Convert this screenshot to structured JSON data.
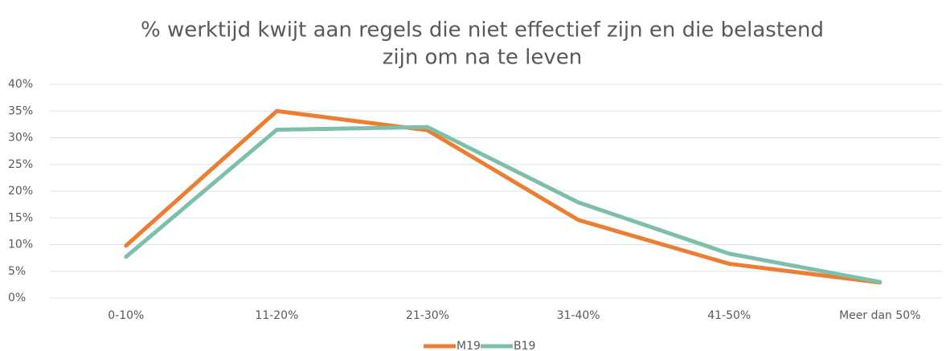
{
  "chart_data": {
    "type": "line",
    "title": [
      "% werktijd kwijt aan regels die niet effectief zijn en die belastend",
      "zijn om na te leven"
    ],
    "categories": [
      "0-10%",
      "11-20%",
      "21-30%",
      "31-40%",
      "41-50%",
      "Meer dan 50%"
    ],
    "series": [
      {
        "name": "M19",
        "color": "#ed7d31",
        "values": [
          9.8,
          35,
          31.4,
          14.6,
          6.4,
          2.9
        ]
      },
      {
        "name": "B19",
        "color": "#7dbfab",
        "values": [
          7.7,
          31.5,
          32,
          17.9,
          8.3,
          3.0
        ]
      }
    ],
    "ylim": [
      0,
      40
    ],
    "yticks": [
      {
        "value": 0,
        "label": "0%"
      },
      {
        "value": 5,
        "label": "5%"
      },
      {
        "value": 10,
        "label": "10%"
      },
      {
        "value": 15,
        "label": "15%"
      },
      {
        "value": 20,
        "label": "20%"
      },
      {
        "value": 25,
        "label": "25%"
      },
      {
        "value": 30,
        "label": "30%"
      },
      {
        "value": 35,
        "label": "35%"
      },
      {
        "value": 40,
        "label": "40%"
      }
    ],
    "grid": true,
    "legend": "bottom"
  }
}
